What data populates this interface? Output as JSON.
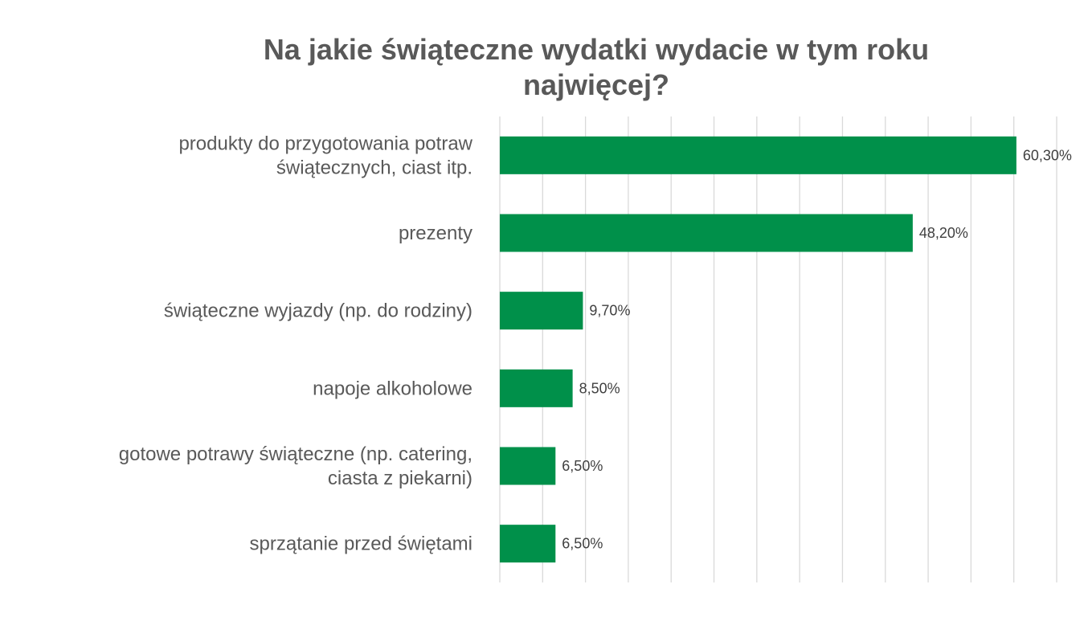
{
  "chart_data": {
    "type": "bar",
    "orientation": "horizontal",
    "title_lines": [
      "Na jakie świąteczne wydatki wydacie w tym roku",
      "najwięcej?"
    ],
    "categories": [
      [
        "produkty do przygotowania potraw",
        "świątecznych, ciast itp."
      ],
      [
        "prezenty"
      ],
      [
        "świąteczne wyjazdy (np. do rodziny)"
      ],
      [
        "napoje alkoholowe"
      ],
      [
        "gotowe potrawy świąteczne (np. catering,",
        "ciasta z piekarni)"
      ],
      [
        "sprzątanie przed świętami"
      ]
    ],
    "values": [
      60.3,
      48.2,
      9.7,
      8.5,
      6.5,
      6.5
    ],
    "data_labels": [
      "60,30%",
      "48,20%",
      "9,70%",
      "8,50%",
      "6,50%",
      "6,50%"
    ],
    "xlim": [
      0,
      65
    ],
    "x_grid_step": 5,
    "grid": true,
    "xlabel": "",
    "ylabel": "",
    "bar_color": "#00904A",
    "grid_color": "#D9D9D9"
  }
}
